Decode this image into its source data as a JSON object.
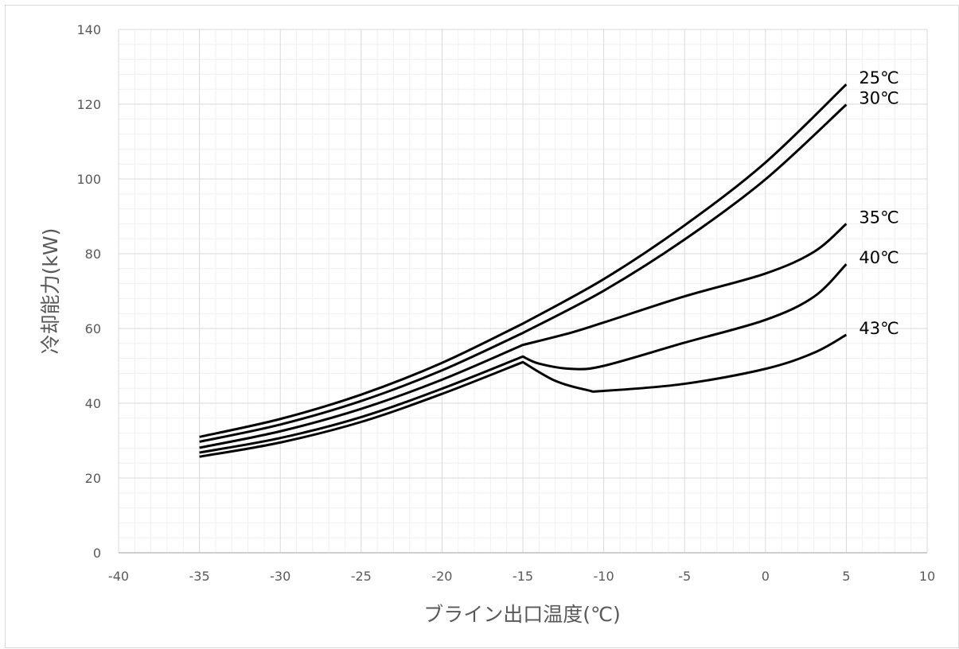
{
  "chart_data": {
    "type": "line",
    "title": "",
    "xlabel": "ブライン出口温度(℃)",
    "ylabel": "冷却能力(kW)",
    "xlim": [
      -40,
      10
    ],
    "ylim": [
      0,
      140
    ],
    "x_ticks": [
      -40,
      -35,
      -30,
      -25,
      -20,
      -15,
      -10,
      -5,
      0,
      5,
      10
    ],
    "y_ticks": [
      0,
      20,
      40,
      60,
      80,
      100,
      120,
      140
    ],
    "x_tick_labels": [
      "-40",
      "-35",
      "-30",
      "-25",
      "-20",
      "-15",
      "-10",
      "-5",
      "0",
      "5",
      "10"
    ],
    "y_tick_labels": [
      "0",
      "20",
      "40",
      "60",
      "80",
      "100",
      "120",
      "140"
    ],
    "grid": true,
    "legend": "none (series labeled at right end of each line)",
    "series": [
      {
        "name": "25℃",
        "points": [
          [
            -35,
            31.0
          ],
          [
            -30,
            35.8
          ],
          [
            -25,
            42.3
          ],
          [
            -20,
            50.8
          ],
          [
            -15,
            61.3
          ],
          [
            -10,
            73.2
          ],
          [
            -5,
            87.6
          ],
          [
            0,
            104.4
          ],
          [
            5,
            125.3
          ]
        ]
      },
      {
        "name": "30℃",
        "points": [
          [
            -35,
            29.7
          ],
          [
            -30,
            34.3
          ],
          [
            -25,
            40.6
          ],
          [
            -20,
            48.8
          ],
          [
            -15,
            58.8
          ],
          [
            -10,
            70.1
          ],
          [
            -5,
            83.8
          ],
          [
            0,
            99.9
          ],
          [
            5,
            119.9
          ]
        ]
      },
      {
        "name": "35℃",
        "points": [
          [
            -35,
            28.1
          ],
          [
            -30,
            32.5
          ],
          [
            -25,
            38.5
          ],
          [
            -20,
            46.3
          ],
          [
            -15,
            55.6
          ],
          [
            -12,
            58.9
          ],
          [
            -10,
            61.6
          ],
          [
            -5,
            68.6
          ],
          [
            0,
            74.7
          ],
          [
            3,
            80.5
          ],
          [
            5,
            88.0
          ]
        ]
      },
      {
        "name": "40℃",
        "points": [
          [
            -35,
            26.8
          ],
          [
            -30,
            30.7
          ],
          [
            -25,
            36.3
          ],
          [
            -20,
            43.9
          ],
          [
            -15,
            52.5
          ],
          [
            -14,
            50.6
          ],
          [
            -12,
            49.2
          ],
          [
            -10,
            50.0
          ],
          [
            -5,
            56.2
          ],
          [
            0,
            62.3
          ],
          [
            3,
            68.5
          ],
          [
            5,
            77.2
          ]
        ]
      },
      {
        "name": "43℃",
        "points": [
          [
            -35,
            25.7
          ],
          [
            -30,
            29.5
          ],
          [
            -25,
            35.0
          ],
          [
            -20,
            42.5
          ],
          [
            -15,
            51.0
          ],
          [
            -13,
            46.0
          ],
          [
            -11,
            43.5
          ],
          [
            -10,
            43.3
          ],
          [
            -5,
            45.2
          ],
          [
            0,
            49.2
          ],
          [
            3,
            53.5
          ],
          [
            5,
            58.3
          ]
        ]
      }
    ]
  }
}
